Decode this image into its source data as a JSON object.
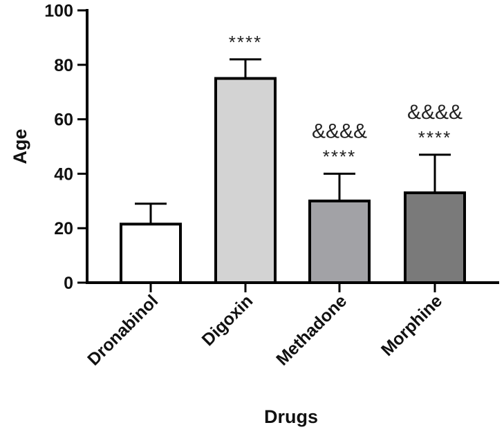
{
  "chart_data": {
    "type": "bar",
    "xlabel": "Drugs",
    "ylabel": "Age",
    "ylim": [
      0,
      100
    ],
    "yticks": [
      0,
      20,
      40,
      60,
      80,
      100
    ],
    "grid": false,
    "categories": [
      "Dronabinol",
      "Digoxin",
      "Methadone",
      "Morphine"
    ],
    "values": [
      21.5,
      75,
      30,
      33
    ],
    "errors": [
      7.5,
      7,
      10,
      14
    ],
    "colors": [
      "#ffffff",
      "#d3d3d3",
      "#a2a2a6",
      "#7a7a7a"
    ],
    "annotations": [
      [],
      [
        "****"
      ],
      [
        "&&&&",
        "****"
      ],
      [
        "&&&&",
        "****"
      ]
    ]
  }
}
